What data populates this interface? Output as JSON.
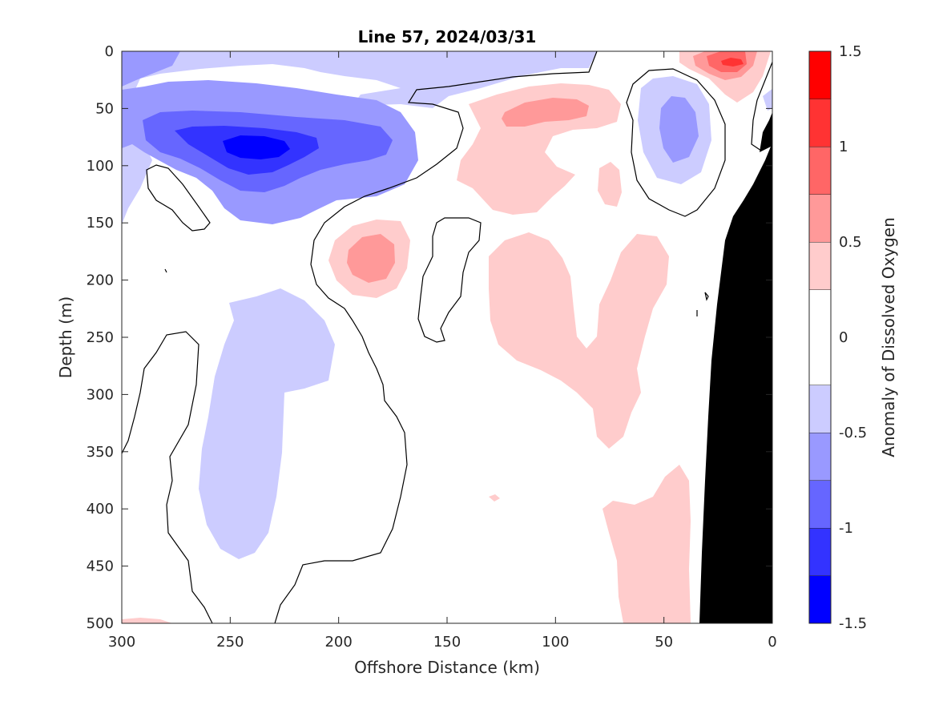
{
  "chart_data": {
    "type": "heatmap",
    "subtype": "filled-contour-section",
    "title": "Line 57, 2024/03/31",
    "xlabel": "Offshore Distance (km)",
    "ylabel": "Depth (m)",
    "xlim": [
      300,
      0
    ],
    "x_reversed": true,
    "ylim": [
      0,
      500
    ],
    "y_reversed": true,
    "x_ticks": [
      300,
      250,
      200,
      150,
      100,
      50,
      0
    ],
    "x_tick_labels": [
      "300",
      "250",
      "200",
      "150",
      "100",
      "50",
      "0"
    ],
    "y_ticks": [
      0,
      50,
      100,
      150,
      200,
      250,
      300,
      350,
      400,
      450,
      500
    ],
    "y_tick_labels": [
      "0",
      "50",
      "100",
      "150",
      "200",
      "250",
      "300",
      "350",
      "400",
      "450",
      "500"
    ],
    "grid": false,
    "colorbar": {
      "label": "Anomaly of Dissolved Oxygen",
      "range": [
        -1.5,
        1.5
      ],
      "ticks": [
        -1.5,
        -1,
        -0.5,
        0,
        0.5,
        1,
        1.5
      ],
      "tick_labels": [
        "-1.5",
        "-1",
        "-0.5",
        "0",
        "0.5",
        "1",
        "1.5"
      ],
      "levels": [
        {
          "range": [
            -1.5,
            -1.25
          ],
          "color": "#0000ff"
        },
        {
          "range": [
            -1.25,
            -1.0
          ],
          "color": "#3333ff"
        },
        {
          "range": [
            -1.0,
            -0.75
          ],
          "color": "#6666ff"
        },
        {
          "range": [
            -0.75,
            -0.5
          ],
          "color": "#9999ff"
        },
        {
          "range": [
            -0.5,
            -0.25
          ],
          "color": "#ccccff"
        },
        {
          "range": [
            -0.25,
            0.25
          ],
          "color": "#ffffff"
        },
        {
          "range": [
            0.25,
            0.5
          ],
          "color": "#ffcccc"
        },
        {
          "range": [
            0.5,
            0.75
          ],
          "color": "#ff9999"
        },
        {
          "range": [
            0.75,
            1.0
          ],
          "color": "#ff6666"
        },
        {
          "range": [
            1.0,
            1.25
          ],
          "color": "#ff3333"
        },
        {
          "range": [
            1.25,
            1.5
          ],
          "color": "#ff0000"
        }
      ]
    },
    "bathymetry_color": "#000000",
    "features": [
      {
        "kind": "negative-anomaly",
        "level": -1.5,
        "center_km": 240,
        "center_depth_m": 85
      },
      {
        "kind": "negative-anomaly",
        "level": -0.75,
        "center_km": 42,
        "center_depth_m": 70
      },
      {
        "kind": "negative-anomaly",
        "level": -0.5,
        "center_km": 240,
        "center_depth_m": 330
      },
      {
        "kind": "positive-anomaly",
        "level": 1.25,
        "center_km": 20,
        "center_depth_m": 10
      },
      {
        "kind": "positive-anomaly",
        "level": 0.75,
        "center_km": 100,
        "center_depth_m": 55
      },
      {
        "kind": "positive-anomaly",
        "level": 0.75,
        "center_km": 185,
        "center_depth_m": 185
      },
      {
        "kind": "positive-anomaly",
        "level": 0.25,
        "center_km": 90,
        "center_depth_m": 250
      },
      {
        "kind": "positive-anomaly",
        "level": 0.25,
        "center_km": 40,
        "center_depth_m": 430
      }
    ]
  }
}
